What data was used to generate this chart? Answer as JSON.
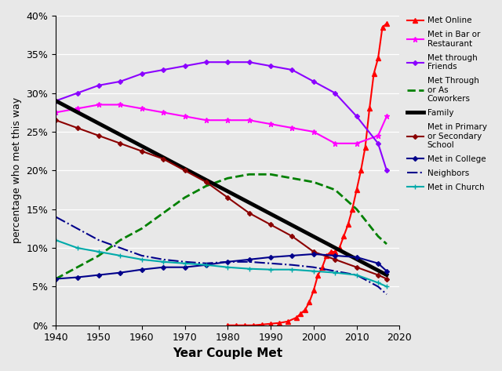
{
  "title": "",
  "xlabel": "Year Couple Met",
  "ylabel": "percentage who met this way",
  "xlim": [
    1940,
    2020
  ],
  "ylim": [
    0,
    0.4
  ],
  "yticks": [
    0,
    0.05,
    0.1,
    0.15,
    0.2,
    0.25,
    0.3,
    0.35,
    0.4
  ],
  "ytick_labels": [
    "0%",
    "5%",
    "10%",
    "15%",
    "20%",
    "25%",
    "30%",
    "35%",
    "40%"
  ],
  "xticks": [
    1940,
    1950,
    1960,
    1970,
    1980,
    1990,
    2000,
    2010,
    2020
  ],
  "series": [
    {
      "key": "met_online",
      "label": "Met Online",
      "color": "#FF0000",
      "linestyle": "-",
      "marker": "^",
      "markersize": 4,
      "linewidth": 1.5,
      "years": [
        1980,
        1982,
        1984,
        1986,
        1988,
        1990,
        1992,
        1994,
        1996,
        1997,
        1998,
        1999,
        2000,
        2001,
        2002,
        2003,
        2004,
        2005,
        2006,
        2007,
        2008,
        2009,
        2010,
        2011,
        2012,
        2013,
        2014,
        2015,
        2016,
        2017
      ],
      "values": [
        0.0,
        0.0,
        0.0,
        0.0,
        0.001,
        0.002,
        0.003,
        0.005,
        0.01,
        0.015,
        0.02,
        0.03,
        0.045,
        0.065,
        0.075,
        0.09,
        0.095,
        0.095,
        0.1,
        0.115,
        0.13,
        0.15,
        0.175,
        0.2,
        0.23,
        0.28,
        0.325,
        0.345,
        0.385,
        0.39
      ]
    },
    {
      "key": "met_bar",
      "label": "Met in Bar or\nRestaurant",
      "color": "#FF00FF",
      "linestyle": "-",
      "marker": "*",
      "markersize": 5,
      "linewidth": 1.5,
      "years": [
        1940,
        1945,
        1950,
        1955,
        1960,
        1965,
        1970,
        1975,
        1980,
        1985,
        1990,
        1995,
        2000,
        2005,
        2010,
        2015,
        2017
      ],
      "values": [
        0.275,
        0.28,
        0.285,
        0.285,
        0.28,
        0.275,
        0.27,
        0.265,
        0.265,
        0.265,
        0.26,
        0.255,
        0.25,
        0.235,
        0.235,
        0.245,
        0.27
      ]
    },
    {
      "key": "met_friends",
      "label": "Met through\nFriends",
      "color": "#8B00FF",
      "linestyle": "-",
      "marker": "D",
      "markersize": 3,
      "linewidth": 1.5,
      "years": [
        1940,
        1945,
        1950,
        1955,
        1960,
        1965,
        1970,
        1975,
        1980,
        1985,
        1990,
        1995,
        2000,
        2005,
        2010,
        2015,
        2017
      ],
      "values": [
        0.29,
        0.3,
        0.31,
        0.315,
        0.325,
        0.33,
        0.335,
        0.34,
        0.34,
        0.34,
        0.335,
        0.33,
        0.315,
        0.3,
        0.27,
        0.235,
        0.2
      ]
    },
    {
      "key": "met_coworkers",
      "label": "Met Through\nor As\nCoworkers",
      "color": "#008000",
      "linestyle": "--",
      "marker": null,
      "markersize": 0,
      "linewidth": 2.0,
      "years": [
        1940,
        1945,
        1950,
        1955,
        1960,
        1965,
        1970,
        1975,
        1980,
        1985,
        1990,
        1995,
        2000,
        2005,
        2010,
        2015,
        2017
      ],
      "values": [
        0.06,
        0.075,
        0.09,
        0.11,
        0.125,
        0.145,
        0.165,
        0.18,
        0.19,
        0.195,
        0.195,
        0.19,
        0.185,
        0.175,
        0.15,
        0.115,
        0.105
      ]
    },
    {
      "key": "family",
      "label": "Family",
      "color": "#000000",
      "linestyle": "-",
      "marker": null,
      "markersize": 0,
      "linewidth": 3.5,
      "years": [
        1940,
        2017
      ],
      "values": [
        0.29,
        0.065
      ]
    },
    {
      "key": "met_school",
      "label": "Met in Primary\nor Secondary\nSchool",
      "color": "#8B0000",
      "linestyle": "-",
      "marker": "D",
      "markersize": 3,
      "linewidth": 1.5,
      "years": [
        1940,
        1945,
        1950,
        1955,
        1960,
        1965,
        1970,
        1975,
        1980,
        1985,
        1990,
        1995,
        2000,
        2005,
        2010,
        2015,
        2017
      ],
      "values": [
        0.265,
        0.255,
        0.245,
        0.235,
        0.225,
        0.215,
        0.2,
        0.185,
        0.165,
        0.145,
        0.13,
        0.115,
        0.095,
        0.085,
        0.075,
        0.065,
        0.06
      ]
    },
    {
      "key": "met_college",
      "label": "Met in College",
      "color": "#00008B",
      "linestyle": "-",
      "marker": "D",
      "markersize": 3,
      "linewidth": 1.5,
      "years": [
        1940,
        1945,
        1950,
        1955,
        1960,
        1965,
        1970,
        1975,
        1980,
        1985,
        1990,
        1995,
        2000,
        2005,
        2010,
        2015,
        2017
      ],
      "values": [
        0.06,
        0.062,
        0.065,
        0.068,
        0.072,
        0.075,
        0.075,
        0.078,
        0.082,
        0.085,
        0.088,
        0.09,
        0.092,
        0.09,
        0.088,
        0.08,
        0.07
      ]
    },
    {
      "key": "neighbors",
      "label": "Neighbors",
      "color": "#00008B",
      "linestyle": "-.",
      "marker": null,
      "markersize": 0,
      "linewidth": 1.5,
      "years": [
        1940,
        1945,
        1950,
        1955,
        1960,
        1965,
        1970,
        1975,
        1980,
        1985,
        1990,
        1995,
        2000,
        2005,
        2010,
        2015,
        2017
      ],
      "values": [
        0.14,
        0.125,
        0.11,
        0.1,
        0.09,
        0.085,
        0.082,
        0.08,
        0.082,
        0.082,
        0.08,
        0.078,
        0.075,
        0.07,
        0.065,
        0.05,
        0.04
      ]
    },
    {
      "key": "met_church",
      "label": "Met in Church",
      "color": "#00AAAA",
      "linestyle": "-",
      "marker": "+",
      "markersize": 5,
      "linewidth": 1.5,
      "years": [
        1940,
        1945,
        1950,
        1955,
        1960,
        1965,
        1970,
        1975,
        1980,
        1985,
        1990,
        1995,
        2000,
        2005,
        2010,
        2015,
        2017
      ],
      "values": [
        0.11,
        0.1,
        0.095,
        0.09,
        0.085,
        0.082,
        0.08,
        0.078,
        0.075,
        0.073,
        0.072,
        0.072,
        0.07,
        0.068,
        0.065,
        0.055,
        0.05
      ]
    }
  ],
  "bg_color": "#E8E8E8",
  "grid_color": "#FFFFFF",
  "xlabel_fontsize": 11,
  "ylabel_fontsize": 9,
  "tick_fontsize": 9,
  "legend_fontsize": 7.5
}
